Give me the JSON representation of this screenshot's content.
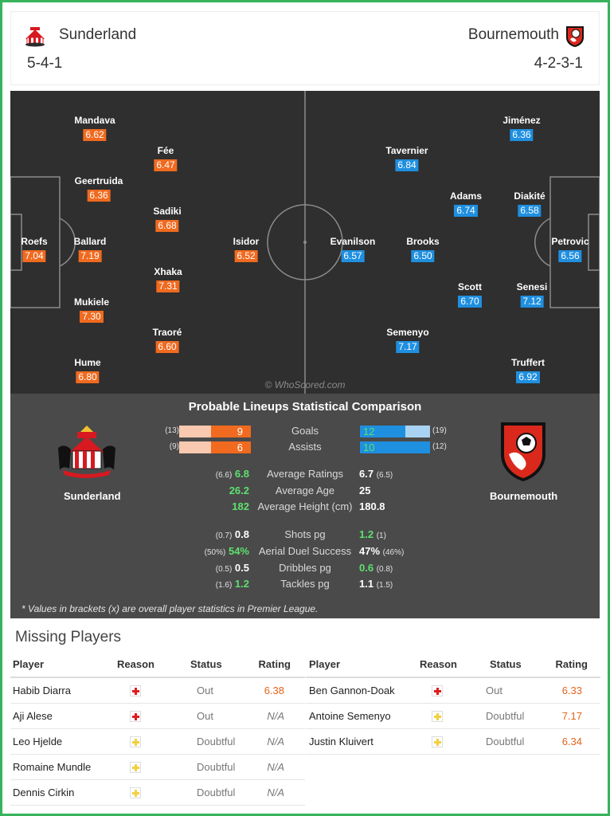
{
  "header": {
    "home": {
      "name": "Sunderland",
      "formation": "5-4-1"
    },
    "away": {
      "name": "Bournemouth",
      "formation": "4-2-3-1"
    }
  },
  "pitch": {
    "watermark": "© WhoScored.com",
    "home_players": [
      {
        "name": "Roefs",
        "rating": "7.04"
      },
      {
        "name": "Mandava",
        "rating": "6.62"
      },
      {
        "name": "Geertruida",
        "rating": "6.36"
      },
      {
        "name": "Ballard",
        "rating": "7.19"
      },
      {
        "name": "Mukiele",
        "rating": "7.30"
      },
      {
        "name": "Hume",
        "rating": "6.80"
      },
      {
        "name": "Fée",
        "rating": "6.47"
      },
      {
        "name": "Sadiki",
        "rating": "6.68"
      },
      {
        "name": "Xhaka",
        "rating": "7.31"
      },
      {
        "name": "Traoré",
        "rating": "6.60"
      },
      {
        "name": "Isidor",
        "rating": "6.52"
      }
    ],
    "away_players": [
      {
        "name": "Petrovic",
        "rating": "6.56"
      },
      {
        "name": "Jiménez",
        "rating": "6.36"
      },
      {
        "name": "Diakité",
        "rating": "6.58"
      },
      {
        "name": "Senesi",
        "rating": "7.12"
      },
      {
        "name": "Truffert",
        "rating": "6.92"
      },
      {
        "name": "Adams",
        "rating": "6.74"
      },
      {
        "name": "Scott",
        "rating": "6.70"
      },
      {
        "name": "Tavernier",
        "rating": "6.84"
      },
      {
        "name": "Brooks",
        "rating": "6.50"
      },
      {
        "name": "Semenyo",
        "rating": "7.17"
      },
      {
        "name": "Evanilson",
        "rating": "6.57"
      }
    ]
  },
  "comparison": {
    "title": "Probable Lineups Statistical Comparison",
    "home_team": "Sunderland",
    "away_team": "Bournemouth",
    "bars": [
      {
        "label": "Goals",
        "home": "9",
        "home_overall": "(13)",
        "away": "12",
        "away_overall": "(19)",
        "home_fraction": 0.56,
        "away_fraction": 0.65
      },
      {
        "label": "Assists",
        "home": "6",
        "home_overall": "(9)",
        "away": "10",
        "away_overall": "(12)",
        "home_fraction": 0.56,
        "away_fraction": 1.0
      }
    ],
    "rows": [
      {
        "label": "Average Ratings",
        "home_overall": "(6.6)",
        "home": "6.8",
        "away": "6.7",
        "away_overall": "(6.5)"
      },
      {
        "label": "Average Age",
        "home_overall": "",
        "home": "26.2",
        "away": "25",
        "away_overall": ""
      },
      {
        "label": "Average Height (cm)",
        "home_overall": "",
        "home": "182",
        "away": "180.8",
        "away_overall": ""
      },
      {
        "label": "Shots pg",
        "home_overall": "(0.7)",
        "home": "0.8",
        "away": "1.2",
        "away_overall": "(1)"
      },
      {
        "label": "Aerial Duel Success",
        "home_overall": "(50%)",
        "home": "54%",
        "away": "47%",
        "away_overall": "(46%)"
      },
      {
        "label": "Dribbles pg",
        "home_overall": "(0.5)",
        "home": "0.5",
        "away": "0.6",
        "away_overall": "(0.8)"
      },
      {
        "label": "Tackles pg",
        "home_overall": "(1.6)",
        "home": "1.2",
        "away": "1.1",
        "away_overall": "(1.5)"
      }
    ],
    "footnote": "* Values in brackets (x) are overall player statistics in Premier League."
  },
  "missing": {
    "title": "Missing Players",
    "columns": {
      "player": "Player",
      "reason": "Reason",
      "status": "Status",
      "rating": "Rating"
    },
    "home": [
      {
        "player": "Habib Diarra",
        "reason": "injury",
        "status": "Out",
        "rating": "6.38"
      },
      {
        "player": "Aji Alese",
        "reason": "injury",
        "status": "Out",
        "rating": "N/A"
      },
      {
        "player": "Leo Hjelde",
        "reason": "doubtful",
        "status": "Doubtful",
        "rating": "N/A"
      },
      {
        "player": "Romaine Mundle",
        "reason": "doubtful",
        "status": "Doubtful",
        "rating": "N/A"
      },
      {
        "player": "Dennis Cirkin",
        "reason": "doubtful",
        "status": "Doubtful",
        "rating": "N/A"
      }
    ],
    "away": [
      {
        "player": "Ben Gannon-Doak",
        "reason": "injury",
        "status": "Out",
        "rating": "6.33"
      },
      {
        "player": "Antoine Semenyo",
        "reason": "doubtful",
        "status": "Doubtful",
        "rating": "7.17"
      },
      {
        "player": "Justin Kluivert",
        "reason": "doubtful",
        "status": "Doubtful",
        "rating": "6.34"
      }
    ]
  },
  "colors": {
    "home_accent": "#f06a1f",
    "away_accent": "#1f8fe0",
    "better_value": "#5ee06f",
    "frame": "#37b35b"
  }
}
